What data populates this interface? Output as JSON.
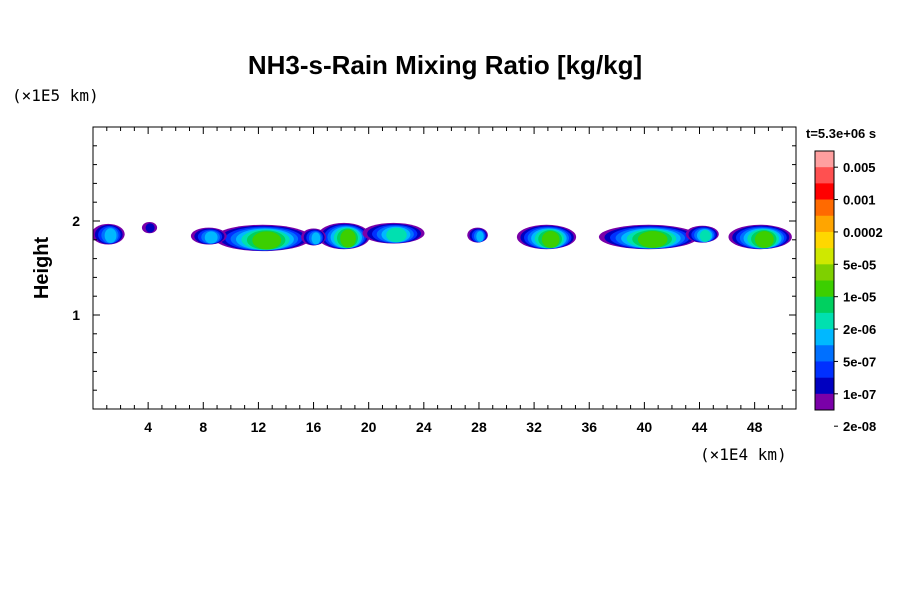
{
  "chart_data": {
    "type": "heatmap",
    "title": "NH3-s-Rain Mixing Ratio [kg/kg]",
    "xlabel": "",
    "ylabel": "Height",
    "x_unit": "(×1E4 km)",
    "y_unit": "(×1E5 km)",
    "time_label": "t=5.3e+06 s",
    "xlim": [
      0,
      51
    ],
    "ylim": [
      0,
      3
    ],
    "x_ticks": [
      4,
      8,
      12,
      16,
      20,
      24,
      28,
      32,
      36,
      40,
      44,
      48
    ],
    "y_ticks": [
      1,
      2
    ],
    "x_tick_labels": [
      "4",
      "8",
      "12",
      "16",
      "20",
      "24",
      "28",
      "32",
      "36",
      "40",
      "44",
      "48"
    ],
    "y_tick_labels": [
      "1",
      "2"
    ],
    "colorbar": {
      "labels": [
        "0.005",
        "0.001",
        "0.0002",
        "5e-05",
        "1e-05",
        "2e-06",
        "5e-07",
        "1e-07",
        "2e-08"
      ],
      "colors": [
        "#ff9f9f",
        "#ff5050",
        "#ff0000",
        "#ff6a00",
        "#ffa500",
        "#ffd700",
        "#cfe800",
        "#7fd000",
        "#3ccf00",
        "#00d060",
        "#00e0b0",
        "#00b8ff",
        "#0070ff",
        "#0030ff",
        "#0000c0",
        "#7a00a8"
      ]
    },
    "cells": [
      {
        "x": 1.1,
        "y": 1.86,
        "w": 2.4,
        "h": 0.22,
        "level": 11
      },
      {
        "x": 4.1,
        "y": 1.93,
        "w": 1.1,
        "h": 0.12,
        "level": 14
      },
      {
        "x": 12.3,
        "y": 1.82,
        "w": 7.0,
        "h": 0.28,
        "level": 8
      },
      {
        "x": 8.4,
        "y": 1.84,
        "w": 2.6,
        "h": 0.18,
        "level": 11
      },
      {
        "x": 18.2,
        "y": 1.84,
        "w": 3.8,
        "h": 0.28,
        "level": 8
      },
      {
        "x": 21.8,
        "y": 1.87,
        "w": 4.5,
        "h": 0.22,
        "level": 10
      },
      {
        "x": 16.0,
        "y": 1.83,
        "w": 1.8,
        "h": 0.18,
        "level": 11
      },
      {
        "x": 27.9,
        "y": 1.85,
        "w": 1.5,
        "h": 0.16,
        "level": 11
      },
      {
        "x": 32.9,
        "y": 1.83,
        "w": 4.3,
        "h": 0.26,
        "level": 8
      },
      {
        "x": 40.3,
        "y": 1.83,
        "w": 7.2,
        "h": 0.26,
        "level": 8
      },
      {
        "x": 44.2,
        "y": 1.86,
        "w": 2.4,
        "h": 0.18,
        "level": 10
      },
      {
        "x": 48.4,
        "y": 1.83,
        "w": 4.6,
        "h": 0.26,
        "level": 8
      }
    ]
  }
}
